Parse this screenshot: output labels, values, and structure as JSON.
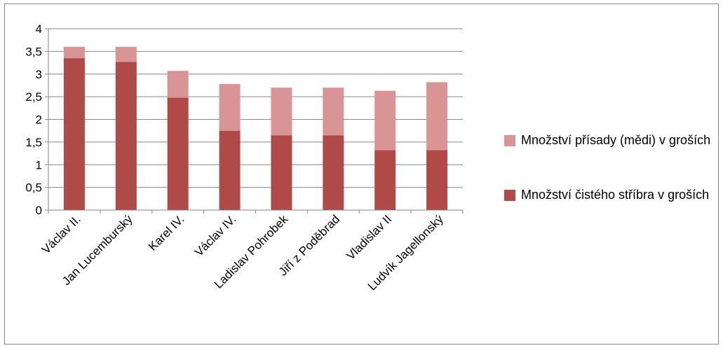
{
  "chart_data": {
    "type": "bar",
    "stacked": true,
    "title": "",
    "xlabel": "",
    "ylabel": "",
    "ylim": [
      0,
      4
    ],
    "yticks": [
      "0",
      "0,5",
      "1",
      "1,5",
      "2",
      "2,5",
      "3",
      "3,5",
      "4"
    ],
    "grid": true,
    "legend_position": "right",
    "categories": [
      "Václav II.",
      "Jan Lucemburský",
      "Karel IV.",
      "Václav IV.",
      "Ladislav Pohrobek",
      "Jiří z Poděbrad",
      "Vladislav II",
      "Ludvík Jagellonský"
    ],
    "series": [
      {
        "name": "Množství  čistého stříbra v groších",
        "color": "#b04a48",
        "values": [
          3.35,
          3.27,
          2.48,
          1.75,
          1.65,
          1.65,
          1.32,
          1.32
        ]
      },
      {
        "name": "Množství přísady (mědi) v groších",
        "color": "#d99595",
        "values": [
          0.25,
          0.33,
          0.59,
          1.03,
          1.05,
          1.05,
          1.31,
          1.5
        ]
      }
    ]
  }
}
